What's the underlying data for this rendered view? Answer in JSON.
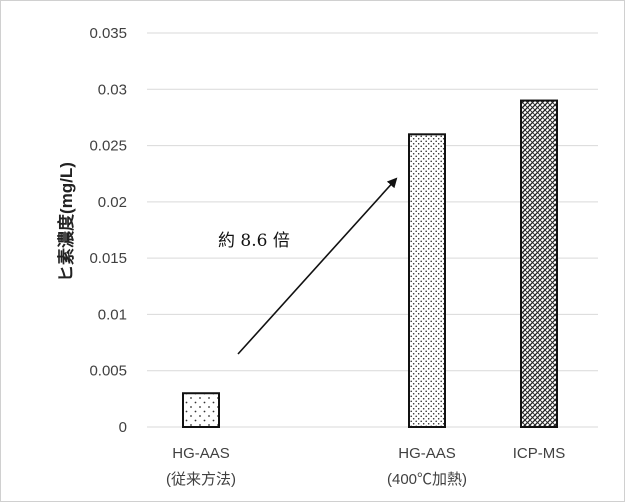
{
  "chart_data": {
    "type": "bar",
    "ylabel": "ヒ素濃度(mg/L)",
    "ylim": [
      0,
      0.035
    ],
    "yticks": [
      "0.035",
      "0.03",
      "0.025",
      "0.02",
      "0.015",
      "0.01",
      "0.005",
      "0"
    ],
    "grid": true,
    "categories": [
      {
        "line1": "HG-AAS",
        "line2": "(従来方法)",
        "value": 0.003,
        "pattern": "dots-sparse"
      },
      {
        "line1": "HG-AAS",
        "line2": "(400℃加熱)",
        "value": 0.026,
        "pattern": "dots-dense"
      },
      {
        "line1": "ICP-MS",
        "line2": "",
        "value": 0.029,
        "pattern": "crosshatch"
      }
    ],
    "annotation": {
      "text": "約 8.6 倍",
      "from_category": 0,
      "to_category": 1
    }
  }
}
